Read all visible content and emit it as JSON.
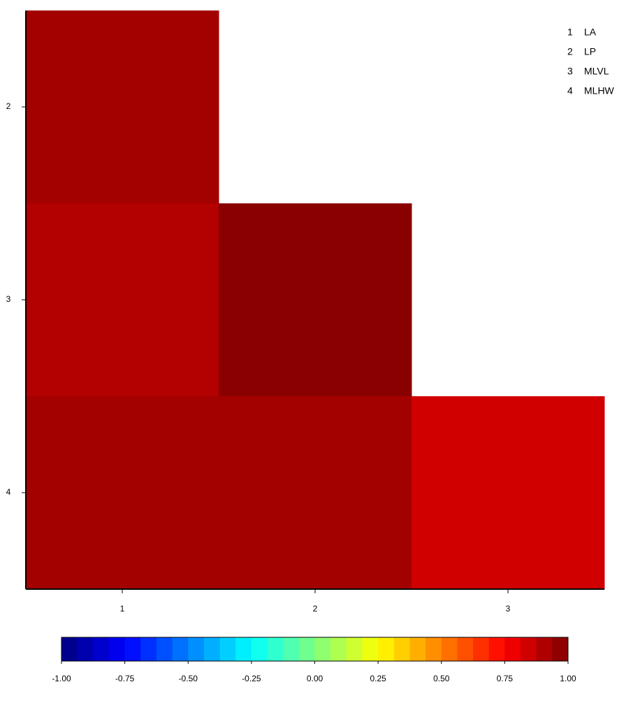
{
  "chart_data": {
    "type": "heatmap",
    "x_categories": [
      "1",
      "2",
      "3"
    ],
    "y_categories": [
      "2",
      "3",
      "4"
    ],
    "values": [
      [
        0.93,
        null,
        null
      ],
      [
        0.9,
        0.98,
        null
      ],
      [
        0.93,
        0.93,
        0.84
      ]
    ],
    "colormap": "jet",
    "clim": [
      -1,
      1
    ],
    "cticks": [
      {
        "value": -1,
        "label": "-1.00"
      },
      {
        "value": -0.75,
        "label": "-0.75"
      },
      {
        "value": -0.5,
        "label": "-0.50"
      },
      {
        "value": -0.25,
        "label": "-0.25"
      },
      {
        "value": 0,
        "label": "0.00"
      },
      {
        "value": 0.25,
        "label": "0.25"
      },
      {
        "value": 0.5,
        "label": "0.50"
      },
      {
        "value": 0.75,
        "label": "0.75"
      },
      {
        "value": 1,
        "label": "1.00"
      }
    ],
    "legend": [
      {
        "id": "1",
        "name": "LA"
      },
      {
        "id": "2",
        "name": "LP"
      },
      {
        "id": "3",
        "name": "MLVL"
      },
      {
        "id": "4",
        "name": "MLHW"
      }
    ]
  }
}
